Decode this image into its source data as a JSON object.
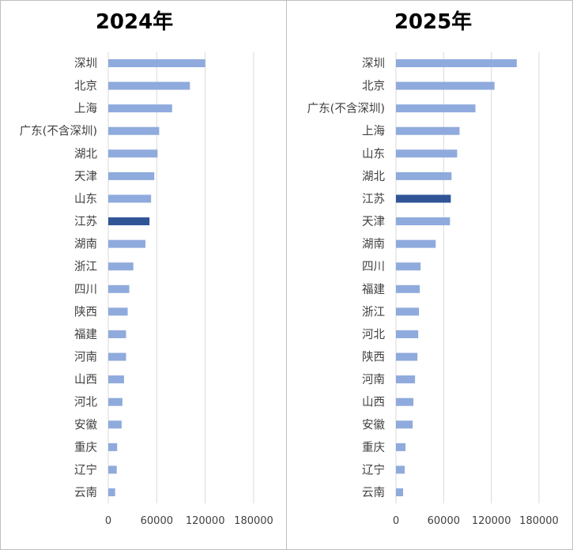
{
  "chart_data": [
    {
      "type": "bar",
      "orientation": "horizontal",
      "title": "2024年",
      "xlabel": "",
      "ylabel": "",
      "xlim": [
        0,
        180000
      ],
      "xticks": [
        0,
        60000,
        120000,
        180000
      ],
      "grid": true,
      "colors": {
        "default": "#8faadc",
        "highlight": "#2f5597"
      },
      "highlight": "江苏",
      "categories": [
        "深圳",
        "北京",
        "上海",
        "广东(不含深圳)",
        "湖北",
        "天津",
        "山东",
        "江苏",
        "湖南",
        "浙江",
        "四川",
        "陕西",
        "福建",
        "河南",
        "山西",
        "河北",
        "安徽",
        "重庆",
        "辽宁",
        "云南"
      ],
      "values": [
        120000,
        101000,
        79000,
        63000,
        61000,
        57000,
        53000,
        51000,
        46000,
        31000,
        26000,
        24000,
        22000,
        22000,
        19500,
        17500,
        16500,
        11000,
        10500,
        8500
      ]
    },
    {
      "type": "bar",
      "orientation": "horizontal",
      "title": "2025年",
      "xlabel": "",
      "ylabel": "",
      "xlim": [
        0,
        180000
      ],
      "xticks": [
        0,
        60000,
        120000,
        180000
      ],
      "grid": true,
      "colors": {
        "default": "#8faadc",
        "highlight": "#2f5597"
      },
      "highlight": "江苏",
      "categories": [
        "深圳",
        "北京",
        "广东(不含深圳)",
        "上海",
        "山东",
        "湖北",
        "江苏",
        "天津",
        "湖南",
        "四川",
        "福建",
        "浙江",
        "河北",
        "陕西",
        "河南",
        "山西",
        "安徽",
        "重庆",
        "辽宁",
        "云南"
      ],
      "values": [
        152000,
        124000,
        100000,
        80000,
        77000,
        70000,
        69000,
        68000,
        50000,
        31000,
        30000,
        29000,
        28000,
        27000,
        24000,
        22000,
        21000,
        12000,
        11000,
        9000
      ]
    }
  ]
}
